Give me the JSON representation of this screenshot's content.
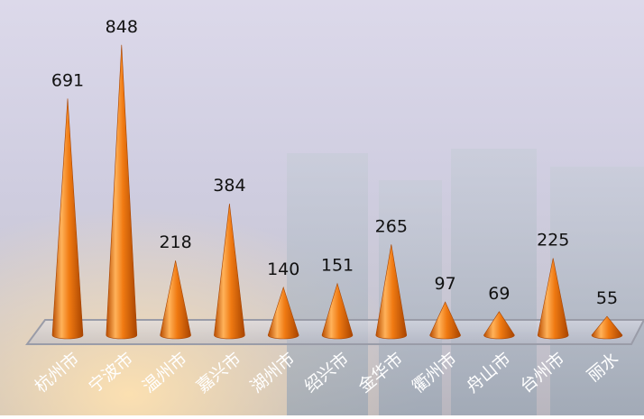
{
  "chart_data": {
    "type": "bar",
    "bar_shape": "cone",
    "categories": [
      "杭州市",
      "宁波市",
      "温州市",
      "嘉兴市",
      "湖州市",
      "绍兴市",
      "金华市",
      "衢州市",
      "舟山市",
      "台州市",
      "丽水"
    ],
    "values": [
      691,
      848,
      218,
      384,
      140,
      151,
      265,
      97,
      69,
      225,
      55
    ],
    "title": "",
    "xlabel": "",
    "ylabel": "",
    "ylim": [
      0,
      900
    ],
    "grid": false,
    "legend": "none",
    "data_labels": true,
    "colors": {
      "bar_light": "#ffb25a",
      "bar_mid": "#f07a12",
      "bar_dark": "#a84400",
      "floor": "#c9cbd6",
      "label_text": "#111111",
      "axis_text": "#ffffff"
    }
  }
}
